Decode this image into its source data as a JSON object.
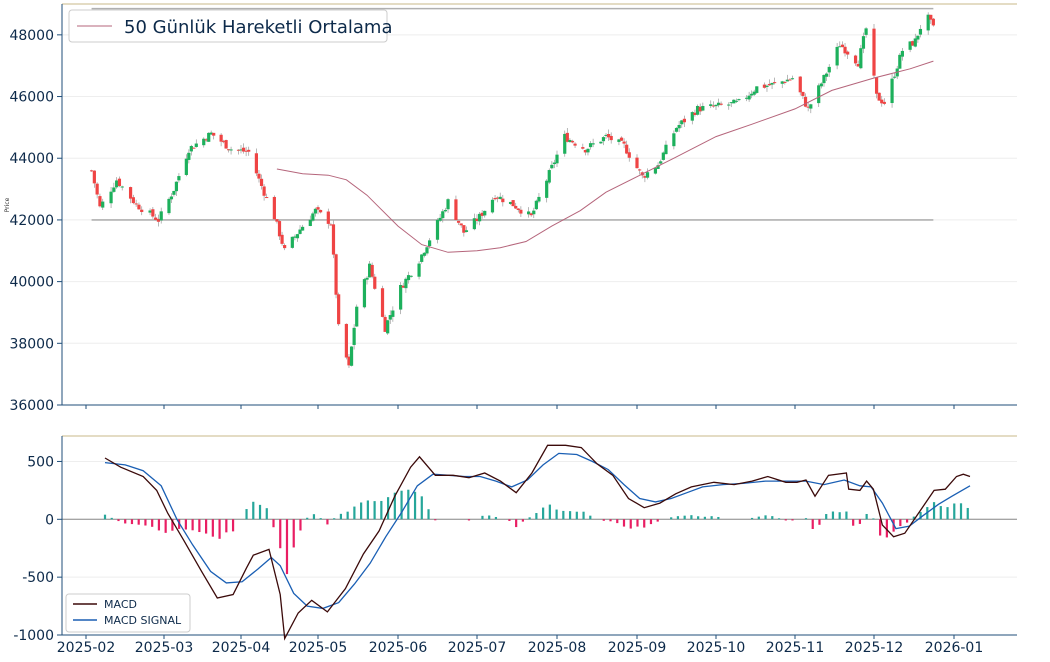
{
  "colors": {
    "axis": "#1f4e79",
    "tick_text": "#0d2a4a",
    "grid": "#eeeeee",
    "up": "#26a69a",
    "up_candle": "#1db05c",
    "down": "#ef4444",
    "ma": "#b5657b",
    "hline": "#b0b0b0",
    "macd": "#3b0a0a",
    "signal": "#1a5fb4",
    "hist_pos": "#26a69a",
    "hist_neg": "#e91e63",
    "top_border": "#c8b88a"
  },
  "chart_data": [
    {
      "type": "candlestick",
      "ylabel": "Price",
      "ylim": [
        36000,
        49000
      ],
      "yticks": [
        36000,
        38000,
        40000,
        42000,
        44000,
        46000,
        48000
      ],
      "x_ticks": [
        "2025-02",
        "2025-03",
        "2025-04",
        "2025-05",
        "2025-06",
        "2025-07",
        "2025-08",
        "2025-09",
        "2025-10",
        "2025-11",
        "2025-12",
        "2026-01"
      ],
      "legend": {
        "position": "top-left",
        "entries": [
          "50 Günlük Hareketli Ortalama"
        ]
      },
      "horizontal_lines": [
        42000,
        48850
      ],
      "close_anchors": [
        [
          "2025-02-03",
          43600
        ],
        [
          "2025-02-06",
          42400
        ],
        [
          "2025-02-12",
          43300
        ],
        [
          "2025-02-19",
          42500
        ],
        [
          "2025-02-27",
          42000
        ],
        [
          "2025-03-05",
          43000
        ],
        [
          "2025-03-11",
          44300
        ],
        [
          "2025-03-20",
          44800
        ],
        [
          "2025-03-28",
          44300
        ],
        [
          "2025-04-04",
          44200
        ],
        [
          "2025-04-08",
          43300
        ],
        [
          "2025-04-14",
          42100
        ],
        [
          "2025-04-18",
          41000
        ],
        [
          "2025-04-24",
          41700
        ],
        [
          "2025-04-30",
          42300
        ],
        [
          "2025-05-06",
          41900
        ],
        [
          "2025-05-09",
          38500
        ],
        [
          "2025-05-13",
          37200
        ],
        [
          "2025-05-16",
          39200
        ],
        [
          "2025-05-21",
          40500
        ],
        [
          "2025-05-27",
          38500
        ],
        [
          "2025-06-02",
          39800
        ],
        [
          "2025-06-09",
          40700
        ],
        [
          "2025-06-16",
          41900
        ],
        [
          "2025-06-20",
          42600
        ],
        [
          "2025-06-26",
          41600
        ],
        [
          "2025-07-02",
          42100
        ],
        [
          "2025-07-08",
          42800
        ],
        [
          "2025-07-15",
          42500
        ],
        [
          "2025-07-22",
          42100
        ],
        [
          "2025-07-29",
          43500
        ],
        [
          "2025-08-04",
          44700
        ],
        [
          "2025-08-12",
          44300
        ],
        [
          "2025-08-20",
          44700
        ],
        [
          "2025-08-27",
          44400
        ],
        [
          "2025-09-03",
          43400
        ],
        [
          "2025-09-09",
          43800
        ],
        [
          "2025-09-16",
          45000
        ],
        [
          "2025-09-24",
          45600
        ],
        [
          "2025-10-03",
          45700
        ],
        [
          "2025-10-10",
          45800
        ],
        [
          "2025-10-17",
          46300
        ],
        [
          "2025-10-24",
          46400
        ],
        [
          "2025-10-31",
          46600
        ],
        [
          "2025-11-06",
          45600
        ],
        [
          "2025-11-12",
          46600
        ],
        [
          "2025-11-18",
          47700
        ],
        [
          "2025-11-25",
          47100
        ],
        [
          "2025-11-28",
          48200
        ],
        [
          "2025-12-02",
          46000
        ],
        [
          "2025-12-05",
          45800
        ],
        [
          "2025-12-08",
          46500
        ],
        [
          "2025-12-12",
          47500
        ],
        [
          "2025-12-17",
          47800
        ],
        [
          "2025-12-21",
          48700
        ],
        [
          "2025-12-24",
          48200
        ]
      ],
      "ma50_anchors": [
        [
          "2025-04-15",
          43650
        ],
        [
          "2025-04-25",
          43500
        ],
        [
          "2025-05-05",
          43450
        ],
        [
          "2025-05-12",
          43300
        ],
        [
          "2025-05-20",
          42800
        ],
        [
          "2025-06-01",
          41800
        ],
        [
          "2025-06-10",
          41200
        ],
        [
          "2025-06-20",
          40950
        ],
        [
          "2025-07-01",
          41000
        ],
        [
          "2025-07-10",
          41100
        ],
        [
          "2025-07-20",
          41300
        ],
        [
          "2025-07-30",
          41800
        ],
        [
          "2025-08-10",
          42300
        ],
        [
          "2025-08-20",
          42900
        ],
        [
          "2025-09-01",
          43400
        ],
        [
          "2025-09-15",
          44000
        ],
        [
          "2025-10-01",
          44700
        ],
        [
          "2025-10-15",
          45100
        ],
        [
          "2025-11-01",
          45600
        ],
        [
          "2025-11-15",
          46200
        ],
        [
          "2025-12-01",
          46600
        ],
        [
          "2025-12-15",
          46900
        ],
        [
          "2025-12-24",
          47150
        ]
      ]
    },
    {
      "type": "line+bar",
      "ylim": [
        -1000,
        720
      ],
      "yticks": [
        -1000,
        -500,
        0,
        500
      ],
      "legend": {
        "position": "bottom-left",
        "entries": [
          "MACD",
          "MACD SIGNAL"
        ]
      },
      "series": [
        {
          "name": "MACD",
          "points": [
            [
              "2025-02-03",
              530
            ],
            [
              "2025-02-10",
              450
            ],
            [
              "2025-02-20",
              370
            ],
            [
              "2025-02-26",
              250
            ],
            [
              "2025-03-03",
              50
            ],
            [
              "2025-03-10",
              -180
            ],
            [
              "2025-03-18",
              -450
            ],
            [
              "2025-03-25",
              -680
            ],
            [
              "2025-04-01",
              -650
            ],
            [
              "2025-04-07",
              -420
            ],
            [
              "2025-04-10",
              -310
            ],
            [
              "2025-04-17",
              -260
            ],
            [
              "2025-04-22",
              -650
            ],
            [
              "2025-04-24",
              -1030
            ],
            [
              "2025-04-30",
              -810
            ],
            [
              "2025-05-06",
              -700
            ],
            [
              "2025-05-13",
              -800
            ],
            [
              "2025-05-21",
              -600
            ],
            [
              "2025-05-29",
              -300
            ],
            [
              "2025-06-05",
              -100
            ],
            [
              "2025-06-12",
              200
            ],
            [
              "2025-06-19",
              450
            ],
            [
              "2025-06-23",
              540
            ],
            [
              "2025-06-30",
              380
            ],
            [
              "2025-07-08",
              380
            ],
            [
              "2025-07-15",
              360
            ],
            [
              "2025-07-22",
              400
            ],
            [
              "2025-07-29",
              330
            ],
            [
              "2025-08-05",
              230
            ],
            [
              "2025-08-12",
              400
            ],
            [
              "2025-08-19",
              640
            ],
            [
              "2025-08-27",
              640
            ],
            [
              "2025-09-03",
              620
            ],
            [
              "2025-09-10",
              480
            ],
            [
              "2025-09-17",
              380
            ],
            [
              "2025-09-24",
              180
            ],
            [
              "2025-10-01",
              100
            ],
            [
              "2025-10-08",
              140
            ],
            [
              "2025-10-15",
              220
            ],
            [
              "2025-10-22",
              280
            ],
            [
              "2025-11-01",
              320
            ],
            [
              "2025-11-10",
              300
            ],
            [
              "2025-11-18",
              330
            ],
            [
              "2025-11-25",
              370
            ],
            [
              "2025-12-03",
              320
            ],
            [
              "2025-12-08",
              320
            ],
            [
              "2025-12-12",
              340
            ],
            [
              "2025-12-16",
              200
            ],
            [
              "2025-12-22",
              380
            ],
            [
              "2025-12-30",
              400
            ],
            [
              "2025-12-31",
              260
            ],
            [
              "2026-01-05",
              250
            ],
            [
              "2026-01-08",
              330
            ],
            [
              "2026-01-11",
              260
            ],
            [
              "2026-01-15",
              -50
            ],
            [
              "2026-01-20",
              -150
            ],
            [
              "2026-01-25",
              -120
            ],
            [
              "2026-01-31",
              50
            ],
            [
              "2026-02-07",
              250
            ],
            [
              "2026-02-12",
              260
            ],
            [
              "2026-02-17",
              370
            ],
            [
              "2026-02-20",
              390
            ],
            [
              "2026-02-23",
              370
            ]
          ]
        },
        {
          "name": "MACD SIGNAL",
          "points": [
            [
              "2025-02-03",
              490
            ],
            [
              "2025-02-12",
              470
            ],
            [
              "2025-02-20",
              420
            ],
            [
              "2025-02-28",
              290
            ],
            [
              "2025-03-07",
              0
            ],
            [
              "2025-03-14",
              -220
            ],
            [
              "2025-03-22",
              -450
            ],
            [
              "2025-03-29",
              -550
            ],
            [
              "2025-04-05",
              -540
            ],
            [
              "2025-04-12",
              -430
            ],
            [
              "2025-04-18",
              -330
            ],
            [
              "2025-04-22",
              -400
            ],
            [
              "2025-04-28",
              -640
            ],
            [
              "2025-05-04",
              -750
            ],
            [
              "2025-05-11",
              -770
            ],
            [
              "2025-05-18",
              -720
            ],
            [
              "2025-05-25",
              -560
            ],
            [
              "2025-06-01",
              -380
            ],
            [
              "2025-06-08",
              -150
            ],
            [
              "2025-06-15",
              60
            ],
            [
              "2025-06-22",
              290
            ],
            [
              "2025-06-29",
              390
            ],
            [
              "2025-07-06",
              380
            ],
            [
              "2025-07-13",
              370
            ],
            [
              "2025-07-20",
              370
            ],
            [
              "2025-07-27",
              330
            ],
            [
              "2025-08-03",
              280
            ],
            [
              "2025-08-10",
              340
            ],
            [
              "2025-08-17",
              470
            ],
            [
              "2025-08-24",
              570
            ],
            [
              "2025-09-01",
              560
            ],
            [
              "2025-09-08",
              500
            ],
            [
              "2025-09-15",
              430
            ],
            [
              "2025-09-22",
              300
            ],
            [
              "2025-09-29",
              180
            ],
            [
              "2025-10-06",
              150
            ],
            [
              "2025-10-13",
              180
            ],
            [
              "2025-10-20",
              230
            ],
            [
              "2025-10-27",
              280
            ],
            [
              "2025-11-05",
              300
            ],
            [
              "2025-11-14",
              310
            ],
            [
              "2025-11-24",
              330
            ],
            [
              "2025-12-03",
              330
            ],
            [
              "2025-12-12",
              330
            ],
            [
              "2025-12-20",
              300
            ],
            [
              "2025-12-29",
              340
            ],
            [
              "2026-01-05",
              290
            ],
            [
              "2026-01-10",
              280
            ],
            [
              "2026-01-15",
              140
            ],
            [
              "2026-01-21",
              -80
            ],
            [
              "2026-01-27",
              -60
            ],
            [
              "2026-02-02",
              30
            ],
            [
              "2026-02-09",
              130
            ],
            [
              "2026-02-15",
              200
            ],
            [
              "2026-02-23",
              290
            ]
          ]
        }
      ]
    }
  ],
  "legend_price": {
    "ma_label": "50 Günlük Hareketli Ortalama"
  },
  "legend_macd": {
    "macd_label": "MACD",
    "signal_label": "MACD SIGNAL"
  },
  "axis_labels": {
    "price_ylabel": "Price"
  }
}
